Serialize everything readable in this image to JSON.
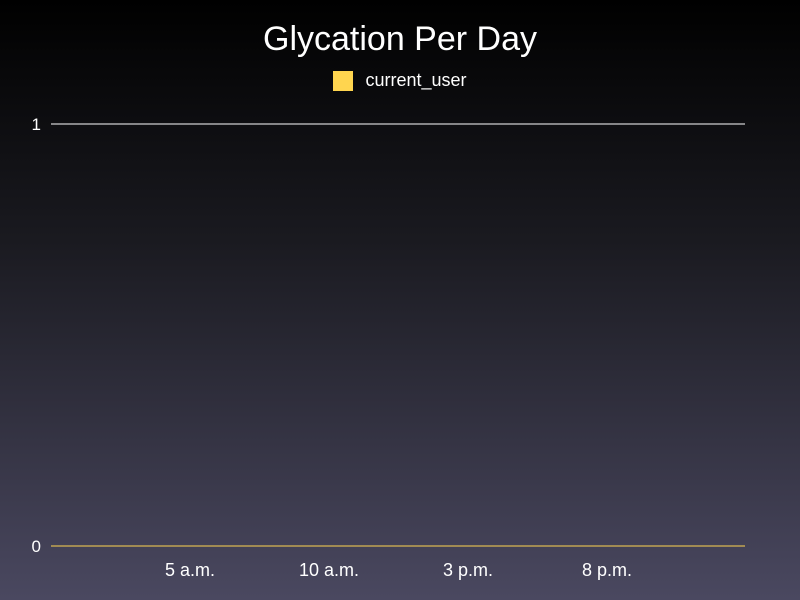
{
  "chart_data": {
    "type": "line",
    "title": "Glycation Per Day",
    "xlabel": "",
    "ylabel": "",
    "ylim": [
      0,
      1
    ],
    "yticks": [
      "0",
      "1"
    ],
    "x_tick_labels": [
      "5 a.m.",
      "10 a.m.",
      "3 p.m.",
      "8 p.m."
    ],
    "legend_position": "top-center",
    "grid": true,
    "series": [
      {
        "name": "current_user",
        "color": "#ffd54f",
        "values": [
          0,
          0,
          0,
          0
        ]
      }
    ]
  }
}
